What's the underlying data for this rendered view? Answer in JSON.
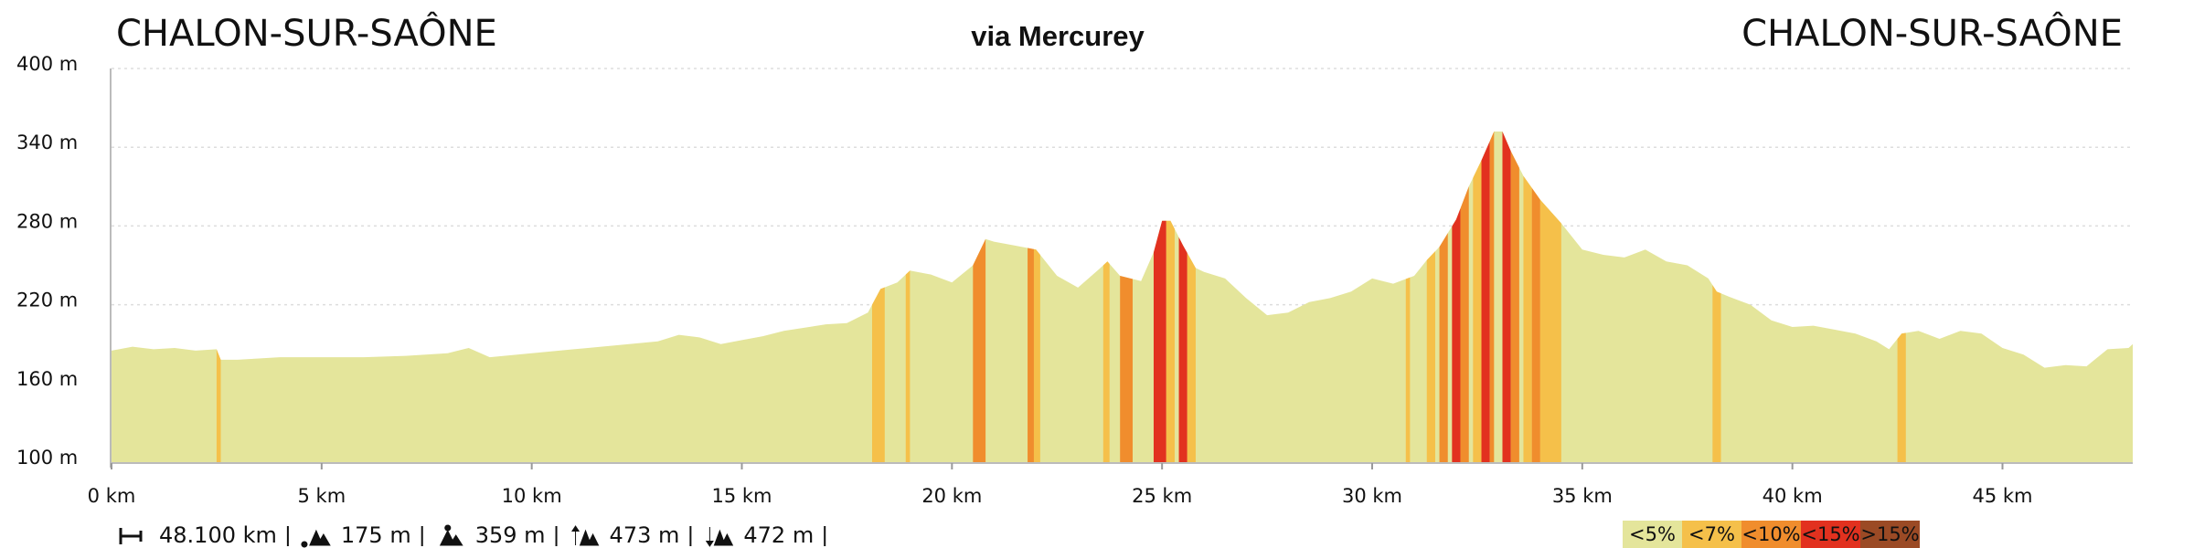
{
  "chart_data": {
    "type": "elevation-area",
    "title_left": "CHALON-SUR-SAÔNE",
    "title_center": "via Mercurey",
    "title_right": "CHALON-SUR-SAÔNE",
    "area_color": "#e4e59b",
    "x": [
      0,
      0.5,
      1,
      1.5,
      2,
      2.5,
      2.6,
      3,
      4,
      5,
      6,
      7,
      8,
      8.5,
      9,
      10,
      11,
      12,
      13,
      13.5,
      14,
      14.5,
      15,
      15.5,
      16,
      17,
      17.5,
      18,
      18.3,
      18.7,
      19,
      19.5,
      20,
      20.5,
      20.8,
      21,
      21.5,
      22,
      22.3,
      22.5,
      23,
      23.5,
      23.7,
      24,
      24.5,
      24.8,
      25,
      25.2,
      25.5,
      25.8,
      26,
      26.5,
      27,
      27.5,
      28,
      28.5,
      29,
      29.5,
      30,
      30.5,
      31,
      31.3,
      31.6,
      32,
      32.3,
      32.6,
      32.9,
      33.1,
      33.3,
      33.6,
      34,
      34.5,
      35,
      35.5,
      36,
      36.5,
      37,
      37.5,
      38,
      38.2,
      38.5,
      39,
      39.5,
      40,
      40.5,
      41,
      41.5,
      42,
      42.3,
      42.6,
      43,
      43.5,
      44,
      44.5,
      45,
      45.5,
      46,
      46.5,
      47,
      47.5,
      48,
      48.1
    ],
    "values": [
      185,
      188,
      186,
      187,
      185,
      186,
      178,
      178,
      180,
      180,
      180,
      181,
      183,
      187,
      180,
      183,
      186,
      189,
      192,
      197,
      195,
      190,
      193,
      196,
      200,
      205,
      206,
      214,
      232,
      237,
      246,
      243,
      237,
      250,
      270,
      268,
      265,
      262,
      250,
      242,
      233,
      247,
      253,
      242,
      238,
      260,
      284,
      284,
      265,
      248,
      245,
      240,
      225,
      212,
      214,
      222,
      225,
      230,
      240,
      236,
      242,
      254,
      264,
      285,
      310,
      330,
      352,
      352,
      337,
      318,
      300,
      282,
      262,
      258,
      256,
      262,
      253,
      250,
      240,
      230,
      226,
      220,
      208,
      203,
      204,
      201,
      198,
      192,
      186,
      198,
      200,
      194,
      200,
      198,
      187,
      182,
      172,
      174,
      173,
      186,
      187,
      190
    ],
    "sections": [
      {
        "from": 2.5,
        "to": 2.6,
        "grade": "<7%"
      },
      {
        "from": 18.1,
        "to": 18.4,
        "grade": "<7%"
      },
      {
        "from": 18.9,
        "to": 19.0,
        "grade": "<7%"
      },
      {
        "from": 20.5,
        "to": 20.8,
        "grade": "<10%"
      },
      {
        "from": 21.8,
        "to": 21.95,
        "grade": "<10%"
      },
      {
        "from": 21.95,
        "to": 22.1,
        "grade": "<7%"
      },
      {
        "from": 23.6,
        "to": 23.75,
        "grade": "<7%"
      },
      {
        "from": 24.0,
        "to": 24.3,
        "grade": "<10%"
      },
      {
        "from": 24.8,
        "to": 25.1,
        "grade": "<15%"
      },
      {
        "from": 25.1,
        "to": 25.3,
        "grade": "<7%"
      },
      {
        "from": 25.4,
        "to": 25.6,
        "grade": "<15%"
      },
      {
        "from": 25.6,
        "to": 25.8,
        "grade": "<7%"
      },
      {
        "from": 30.8,
        "to": 30.9,
        "grade": "<7%"
      },
      {
        "from": 31.3,
        "to": 31.5,
        "grade": "<7%"
      },
      {
        "from": 31.6,
        "to": 31.8,
        "grade": "<10%"
      },
      {
        "from": 31.9,
        "to": 32.1,
        "grade": "<15%"
      },
      {
        "from": 32.1,
        "to": 32.3,
        "grade": "<10%"
      },
      {
        "from": 32.4,
        "to": 32.6,
        "grade": "<7%"
      },
      {
        "from": 32.6,
        "to": 32.8,
        "grade": "<15%"
      },
      {
        "from": 32.8,
        "to": 32.9,
        "grade": "<10%"
      },
      {
        "from": 33.1,
        "to": 33.3,
        "grade": "<15%"
      },
      {
        "from": 33.3,
        "to": 33.5,
        "grade": "<10%"
      },
      {
        "from": 33.6,
        "to": 33.8,
        "grade": "<7%"
      },
      {
        "from": 33.8,
        "to": 34.0,
        "grade": "<10%"
      },
      {
        "from": 34.0,
        "to": 34.5,
        "grade": "<7%"
      },
      {
        "from": 38.1,
        "to": 38.3,
        "grade": "<7%"
      },
      {
        "from": 42.5,
        "to": 42.7,
        "grade": "<7%"
      }
    ],
    "legend": {
      "labels": [
        "<5%",
        "<7%",
        "<10%",
        "<15%",
        ">15%"
      ],
      "colors": [
        "#e4e59b",
        "#f5c04a",
        "#f08d2d",
        "#e2311f",
        "#9b4a25"
      ]
    },
    "xlim": [
      0,
      48.1
    ],
    "xticks": [
      {
        "value": 0,
        "label": "0 km"
      },
      {
        "value": 5,
        "label": "5 km"
      },
      {
        "value": 10,
        "label": "10 km"
      },
      {
        "value": 15,
        "label": "15 km"
      },
      {
        "value": 20,
        "label": "20 km"
      },
      {
        "value": 25,
        "label": "25 km"
      },
      {
        "value": 30,
        "label": "30 km"
      },
      {
        "value": 35,
        "label": "35 km"
      },
      {
        "value": 40,
        "label": "40 km"
      },
      {
        "value": 45,
        "label": "45 km"
      }
    ],
    "ylim": [
      100,
      400
    ],
    "yticks": [
      {
        "value": 100,
        "label": "100 m"
      },
      {
        "value": 160,
        "label": "160 m"
      },
      {
        "value": 220,
        "label": "220 m"
      },
      {
        "value": 280,
        "label": "280 m"
      },
      {
        "value": 340,
        "label": "340 m"
      },
      {
        "value": 400,
        "label": "400 m"
      }
    ],
    "grid": true,
    "stats": [
      "48.100 km",
      "175 m",
      "359 m",
      "473 m",
      "472 m"
    ]
  }
}
